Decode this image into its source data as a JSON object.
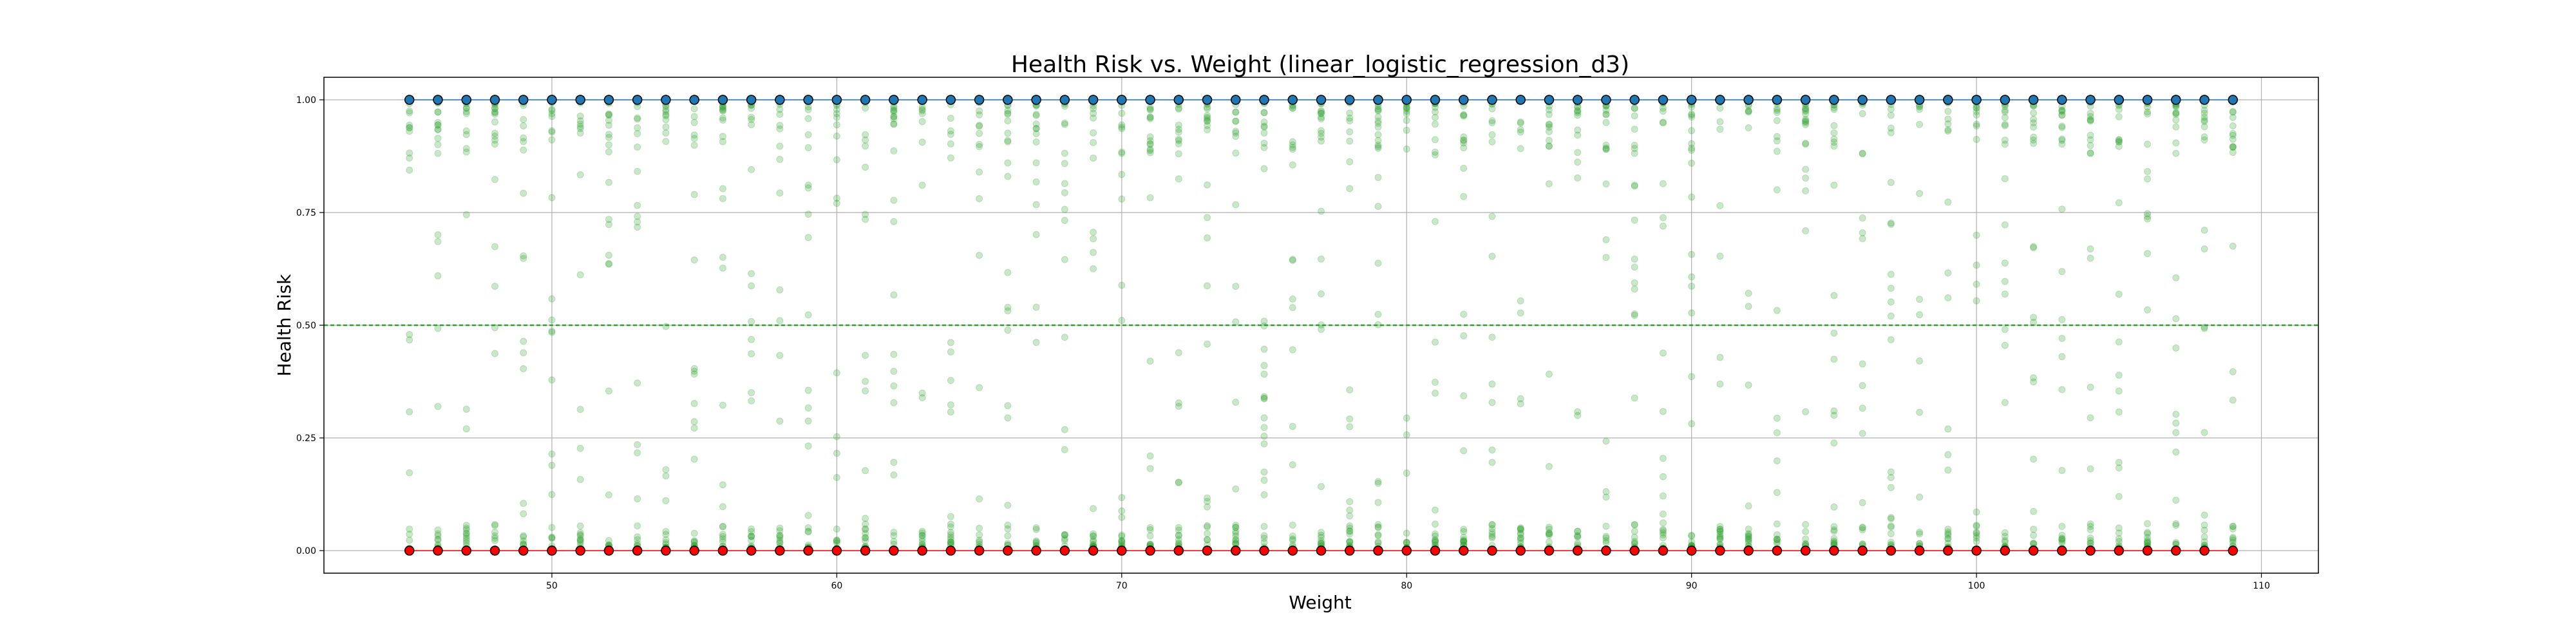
{
  "chart_data": {
    "type": "scatter",
    "title": "Health Risk vs. Weight (linear_logistic_regression_d3)",
    "xlabel": "Weight",
    "ylabel": "Health Risk",
    "xlim": [
      42,
      112
    ],
    "ylim": [
      -0.05,
      1.05
    ],
    "xticks": [
      50,
      60,
      70,
      80,
      90,
      100,
      110
    ],
    "yticks": [
      0.0,
      0.25,
      0.5,
      0.75,
      1.0
    ],
    "grid": true,
    "threshold": 0.5,
    "colors": {
      "predictions": "#2ca02c",
      "positive": "#1f77b4",
      "negative": "#ff0000",
      "marker_edge": "#000000",
      "threshold_line": "#2ca02c",
      "grid": "#b0b0b0"
    },
    "series": [
      {
        "role": "actual_positive",
        "x": [
          45,
          46,
          47,
          48,
          49,
          50,
          51,
          52,
          53,
          54,
          55,
          56,
          57,
          58,
          59,
          60,
          61,
          62,
          63,
          64,
          65,
          66,
          67,
          68,
          69,
          70,
          71,
          72,
          73,
          74,
          75,
          76,
          77,
          78,
          79,
          80,
          81,
          82,
          83,
          84,
          85,
          86,
          87,
          88,
          89,
          90,
          91,
          92,
          93,
          94,
          95,
          96,
          97,
          98,
          99,
          100,
          101,
          102,
          103,
          104,
          105,
          106,
          107,
          108,
          109
        ],
        "y": 1.0
      },
      {
        "role": "actual_negative",
        "x": [
          45,
          46,
          47,
          48,
          49,
          50,
          51,
          52,
          53,
          54,
          55,
          56,
          57,
          58,
          59,
          60,
          61,
          62,
          63,
          64,
          65,
          66,
          67,
          68,
          69,
          70,
          71,
          72,
          73,
          74,
          75,
          76,
          77,
          78,
          79,
          80,
          81,
          82,
          83,
          84,
          85,
          86,
          87,
          88,
          89,
          90,
          91,
          92,
          93,
          94,
          95,
          96,
          97,
          98,
          99,
          100,
          101,
          102,
          103,
          104,
          105,
          106,
          107,
          108,
          109
        ],
        "y": 0.0
      },
      {
        "role": "predicted_probability",
        "x_range": [
          45,
          109
        ],
        "values_per_x": 40,
        "distribution": "mostly near 0 and 1, sparse in between"
      }
    ]
  }
}
